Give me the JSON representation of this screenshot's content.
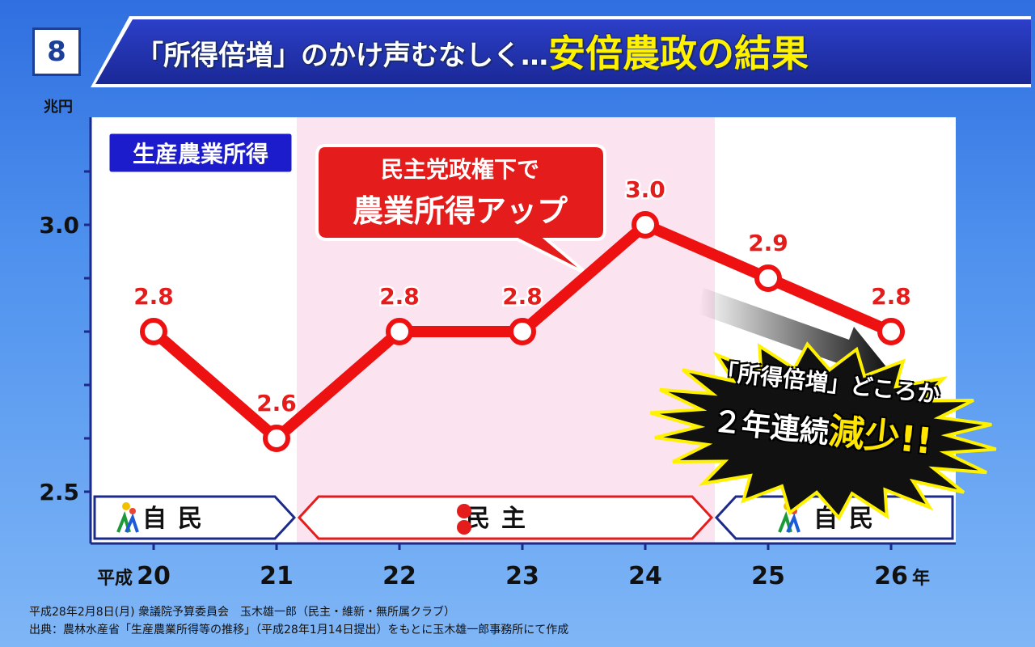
{
  "slide_number": "8",
  "title": {
    "part1": "「所得倍増」のかけ声むなしく…",
    "part2": "安倍農政の結果"
  },
  "unit": "兆円",
  "chart_data": {
    "type": "line",
    "title": "生産農業所得",
    "x": [
      "20",
      "21",
      "22",
      "23",
      "24",
      "25",
      "26"
    ],
    "x_prefix": "平成",
    "x_suffix": "年",
    "values": [
      2.8,
      2.6,
      2.8,
      2.8,
      3.0,
      2.9,
      2.8
    ],
    "data_labels": [
      "2.8",
      "2.6",
      "2.8",
      "2.8",
      "3.0",
      "2.9",
      "2.8"
    ],
    "yticks": [
      "3.0",
      "2.5"
    ],
    "ylim": [
      2.5,
      3.0
    ],
    "series_color": "#ee1111",
    "periods": [
      {
        "label": "自民",
        "from": 0,
        "to": 1,
        "color": "#1c2a8a",
        "background": "#ffffff"
      },
      {
        "label": "民主",
        "from": 1,
        "to": 4.5,
        "color": "#e41c1c",
        "background": "#fbe3ef"
      },
      {
        "label": "自民",
        "from": 4.5,
        "to": 6,
        "color": "#1c2a8a",
        "background": "#ffffff"
      }
    ]
  },
  "callout": {
    "line1": "民主党政権下で",
    "line2": "農業所得アップ"
  },
  "burst": {
    "line1": "「所得倍増」どころか",
    "line2_a": "２年連続",
    "line2_b": "減少!!"
  },
  "footnotes": [
    "平成28年2月8日(月) 衆議院予算委員会　玉木雄一郎（民主・維新・無所属クラブ）",
    "出典：農林水産省「生産農業所得等の推移」（平成28年1月14日提出）をもとに玉木雄一郎事務所にて作成"
  ]
}
